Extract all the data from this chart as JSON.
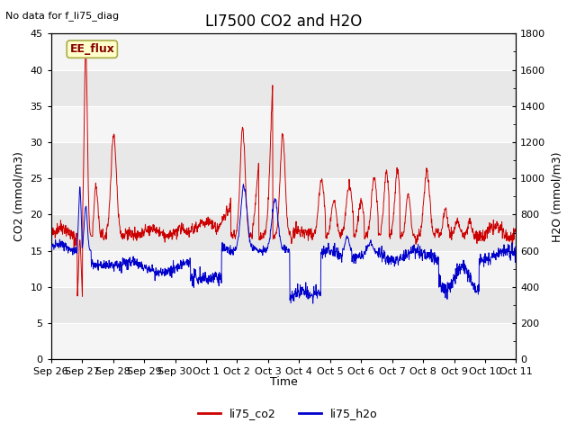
{
  "title": "LI7500 CO2 and H2O",
  "xlabel": "Time",
  "ylabel_left": "CO2 (mmol/m3)",
  "ylabel_right": "H2O (mmol/m3)",
  "ylim_left": [
    0,
    45
  ],
  "ylim_right": [
    0,
    1800
  ],
  "yticks_left": [
    0,
    5,
    10,
    15,
    20,
    25,
    30,
    35,
    40,
    45
  ],
  "yticks_right": [
    0,
    200,
    400,
    600,
    800,
    1000,
    1200,
    1400,
    1600,
    1800
  ],
  "no_data_text": "No data for f_li75_diag",
  "annotation_text": "EE_flux",
  "annotation_box_color": "#ffffcc",
  "annotation_box_edge": "#aaaa44",
  "legend_labels": [
    "li75_co2",
    "li75_h2o"
  ],
  "legend_colors": [
    "#cc0000",
    "#0000cc"
  ],
  "co2_color": "#cc0000",
  "h2o_color": "#0000cc",
  "background_color": "#ffffff",
  "plot_bg_color": "#ffffff",
  "band_color_dark": "#e8e8e8",
  "band_color_light": "#f5f5f5",
  "title_fontsize": 12,
  "label_fontsize": 9,
  "tick_fontsize": 8,
  "no_data_fontsize": 8,
  "xtick_labels": [
    "Sep 26",
    "Sep 27",
    "Sep 28",
    "Sep 29",
    "Sep 30",
    "Oct 1",
    "Oct 2",
    "Oct 3",
    "Oct 4",
    "Oct 5",
    "Oct 6",
    "Oct 7",
    "Oct 8",
    "Oct 9",
    "Oct 10",
    "Oct 11"
  ],
  "num_points": 1500
}
